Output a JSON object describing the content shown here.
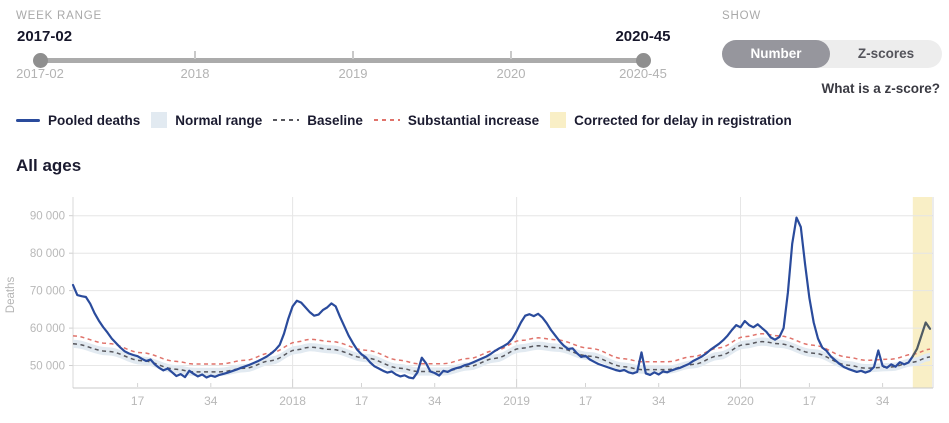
{
  "week_range": {
    "label": "WEEK RANGE",
    "start_value": "2017-02",
    "end_value": "2020-45",
    "axis_labels": [
      "2017-02",
      "2018",
      "2019",
      "2020",
      "2020-45"
    ]
  },
  "show": {
    "label": "SHOW",
    "options": [
      "Number",
      "Z-scores"
    ],
    "selected": "Number",
    "help_link": "What is a z-score?"
  },
  "legend": [
    {
      "label": "Pooled deaths",
      "swatch": "line",
      "color": "#2a4b9c"
    },
    {
      "label": "Normal range",
      "swatch": "area",
      "color": "#e2eaf1"
    },
    {
      "label": "Baseline",
      "swatch": "dash",
      "color": "#57575d"
    },
    {
      "label": "Substantial increase",
      "swatch": "dash",
      "color": "#e0736b"
    },
    {
      "label": "Corrected for delay in registration",
      "swatch": "area",
      "color": "#f9efc6"
    }
  ],
  "section_title": "All ages",
  "chart_data": {
    "type": "line",
    "title": "All ages",
    "ylabel": "Deaths",
    "x_description": "ISO weeks, weekly resolution from 2017-02 (index 0) to 2020-45 (index 199)",
    "start_week": "2017-02",
    "end_week": "2020-45",
    "ylim": [
      44000,
      95000
    ],
    "yticks": [
      50000,
      60000,
      70000,
      80000,
      90000
    ],
    "ytick_labels": [
      "50 000",
      "60 000",
      "70 000",
      "80 000",
      "90 000"
    ],
    "xticks": [
      {
        "week_index": 15,
        "label": "17",
        "type": "week"
      },
      {
        "week_index": 32,
        "label": "34",
        "type": "week"
      },
      {
        "week_index": 51,
        "label": "2018",
        "type": "year"
      },
      {
        "week_index": 67,
        "label": "17",
        "type": "week"
      },
      {
        "week_index": 84,
        "label": "34",
        "type": "week"
      },
      {
        "week_index": 103,
        "label": "2019",
        "type": "year"
      },
      {
        "week_index": 119,
        "label": "17",
        "type": "week"
      },
      {
        "week_index": 136,
        "label": "34",
        "type": "week"
      },
      {
        "week_index": 155,
        "label": "2020",
        "type": "year"
      },
      {
        "week_index": 171,
        "label": "17",
        "type": "week"
      },
      {
        "week_index": 188,
        "label": "34",
        "type": "week"
      }
    ],
    "grid": {
      "horizontal": true,
      "vertical_at_years": true
    },
    "legend_position": "top-left above chart",
    "series": {
      "pooled_deaths_thousands": [
        71.5,
        68.8,
        68.5,
        68.3,
        66.5,
        64.0,
        62.0,
        60.3,
        58.8,
        57.2,
        56.0,
        54.8,
        53.8,
        53.2,
        52.8,
        52.5,
        51.8,
        51.2,
        51.6,
        50.3,
        49.4,
        48.7,
        49.2,
        48.2,
        47.2,
        47.7,
        46.9,
        48.6,
        47.8,
        47.1,
        47.6,
        46.8,
        47.3,
        47.0,
        47.5,
        47.8,
        48.1,
        48.5,
        48.9,
        49.4,
        49.8,
        50.2,
        50.7,
        51.2,
        51.8,
        52.4,
        53.2,
        54.2,
        55.5,
        58.5,
        62.5,
        65.8,
        67.3,
        66.8,
        65.5,
        64.2,
        63.3,
        63.6,
        64.8,
        65.5,
        66.6,
        65.8,
        63.0,
        60.5,
        58.0,
        56.0,
        54.2,
        53.0,
        52.2,
        50.8,
        49.8,
        49.2,
        48.6,
        48.1,
        48.4,
        47.6,
        47.1,
        47.4,
        46.8,
        46.6,
        48.2,
        52.1,
        50.6,
        48.4,
        48.0,
        47.3,
        48.6,
        48.3,
        48.9,
        49.3,
        49.6,
        50.1,
        50.4,
        50.9,
        51.4,
        51.9,
        52.4,
        53.1,
        53.9,
        54.6,
        55.2,
        55.9,
        57.2,
        59.2,
        61.5,
        63.3,
        63.7,
        63.2,
        63.8,
        62.8,
        61.3,
        59.5,
        58.0,
        56.5,
        55.3,
        54.4,
        54.6,
        53.3,
        52.3,
        52.6,
        51.6,
        51.0,
        50.4,
        50.0,
        49.6,
        49.2,
        48.8,
        48.5,
        48.8,
        48.2,
        47.9,
        48.3,
        53.5,
        47.9,
        47.5,
        48.2,
        47.6,
        48.4,
        48.2,
        48.7,
        49.1,
        49.4,
        49.9,
        50.4,
        51.2,
        51.8,
        52.4,
        53.2,
        54.2,
        55.0,
        55.8,
        56.8,
        58.0,
        59.5,
        60.8,
        60.2,
        61.9,
        60.8,
        60.2,
        61.0,
        60.0,
        59.0,
        57.5,
        56.9,
        57.6,
        60.0,
        69.5,
        82.5,
        89.5,
        87.0,
        77.0,
        68.0,
        61.5,
        57.2,
        54.8,
        53.9,
        52.4,
        51.4,
        50.4,
        49.6,
        49.1,
        48.7,
        48.3,
        48.6,
        48.1,
        48.5,
        49.6,
        54.0,
        49.9,
        49.4,
        50.3,
        49.7,
        50.9,
        50.3,
        50.8,
        52.5,
        54.5,
        58.0,
        61.5,
        59.8
      ],
      "baseline_control_points": [
        [
          0,
          55.8
        ],
        [
          8,
          53.8
        ],
        [
          16,
          51.3
        ],
        [
          24,
          49.0
        ],
        [
          28,
          48.3
        ],
        [
          34,
          48.3
        ],
        [
          40,
          49.3
        ],
        [
          46,
          51.3
        ],
        [
          52,
          54.2
        ],
        [
          55,
          54.9
        ],
        [
          60,
          54.3
        ],
        [
          68,
          52.0
        ],
        [
          76,
          49.3
        ],
        [
          80,
          48.4
        ],
        [
          86,
          48.4
        ],
        [
          92,
          49.8
        ],
        [
          98,
          51.9
        ],
        [
          104,
          54.6
        ],
        [
          108,
          55.3
        ],
        [
          112,
          54.8
        ],
        [
          120,
          52.5
        ],
        [
          128,
          49.7
        ],
        [
          132,
          48.9
        ],
        [
          138,
          48.9
        ],
        [
          144,
          50.3
        ],
        [
          150,
          52.6
        ],
        [
          156,
          55.6
        ],
        [
          160,
          56.4
        ],
        [
          164,
          55.8
        ],
        [
          172,
          53.3
        ],
        [
          180,
          50.1
        ],
        [
          184,
          49.3
        ],
        [
          190,
          49.6
        ],
        [
          195,
          50.9
        ],
        [
          199,
          52.3
        ]
      ],
      "substantial_increase_offset_thousands": 2.1,
      "normal_range_half_width_thousands": 1.1
    },
    "corrected_region": {
      "start_week_index": 195,
      "end_week_index": 199,
      "label": "Corrected for delay in registration"
    },
    "colors": {
      "pooled_deaths": "#2a4b9c",
      "pooled_deaths_corrected": "#4f5b64",
      "baseline": "#57575d",
      "substantial_increase": "#e0736b",
      "normal_range": "#e2eaf1",
      "corrected_region": "#f9efc6",
      "grid": "#e6e6e6",
      "axis": "#cfcfcf",
      "tick_text": "#b8b8b8"
    }
  }
}
